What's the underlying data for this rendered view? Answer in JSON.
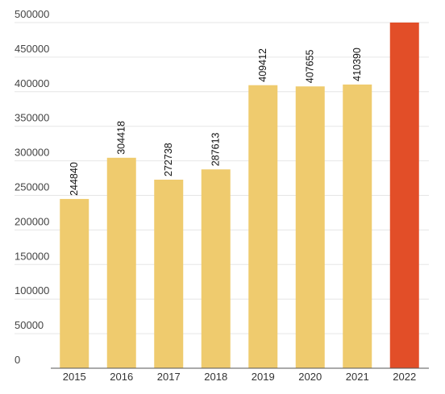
{
  "chart_data": {
    "type": "bar",
    "title": "",
    "xlabel": "",
    "ylabel": "",
    "categories": [
      "2015",
      "2016",
      "2017",
      "2018",
      "2019",
      "2020",
      "2021",
      "2022"
    ],
    "values": [
      244840,
      304418,
      272738,
      287613,
      409412,
      407655,
      410390,
      500000
    ],
    "data_labels": [
      "244840",
      "304418",
      "272738",
      "287613",
      "409412",
      "407655",
      "410390",
      ""
    ],
    "bar_colors": [
      "#EFCB6E",
      "#EFCB6E",
      "#EFCB6E",
      "#EFCB6E",
      "#EFCB6E",
      "#EFCB6E",
      "#EFCB6E",
      "#E24E28"
    ],
    "ylim": [
      0,
      500000
    ],
    "yticks": [
      "0",
      "50000",
      "100000",
      "150000",
      "200000",
      "250000",
      "300000",
      "350000",
      "400000",
      "450000",
      "500000"
    ],
    "grid": true,
    "legend": "none"
  }
}
